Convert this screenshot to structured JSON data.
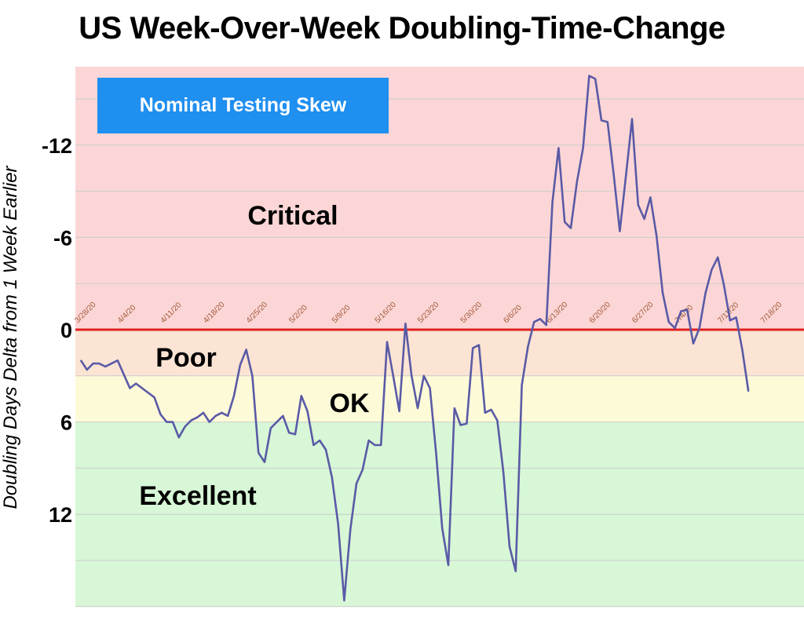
{
  "title": "US Week-Over-Week Doubling-Time-Change",
  "annotation": "Nominal Testing Skew",
  "zones": [
    {
      "label": "Critical",
      "from": -20,
      "to": 0,
      "color": "#fcd6d6"
    },
    {
      "label": "Poor",
      "from": 0,
      "to": 3,
      "color": "#fbe4d3"
    },
    {
      "label": "OK",
      "from": 3,
      "to": 6,
      "color": "#fdfad8"
    },
    {
      "label": "Excellent",
      "from": 6,
      "to": 18,
      "color": "#d7f7d6"
    }
  ],
  "chart_data": {
    "type": "line",
    "title": "US Week-Over-Week Doubling-Time-Change",
    "ylabel": "Doubling Days Delta  from 1 Week Earlier",
    "xlabel": "",
    "y_inverted": true,
    "ylim": [
      -17,
      18
    ],
    "yticks": [
      -12,
      -6,
      0,
      6,
      12
    ],
    "ytick_labels": [
      "-12",
      "-6",
      "0",
      "6",
      "12"
    ],
    "x_tick_labels": [
      "3/28/20",
      "4/4/20",
      "4/11/20",
      "4/18/20",
      "4/25/20",
      "5/2/20",
      "5/9/20",
      "5/16/20",
      "5/23/20",
      "5/30/20",
      "6/6/20",
      "6/13/20",
      "6/20/20",
      "6/27/20",
      "7/4/20",
      "7/11/20",
      "7/18/20"
    ],
    "x_start": "3/28/20",
    "grid": true,
    "reference_line": {
      "y": 0,
      "color": "#e02020"
    },
    "series": [
      {
        "color": "#5a5aa6",
        "values": [
          2.0,
          2.6,
          2.2,
          2.2,
          2.4,
          2.2,
          2.0,
          2.9,
          3.8,
          3.5,
          3.8,
          4.1,
          4.4,
          5.5,
          6.0,
          6.0,
          7.0,
          6.3,
          5.9,
          5.7,
          5.4,
          6.0,
          5.6,
          5.4,
          5.6,
          4.3,
          2.3,
          1.3,
          3.0,
          8.0,
          8.6,
          6.4,
          6.0,
          5.6,
          6.7,
          6.8,
          4.3,
          5.3,
          7.5,
          7.2,
          7.8,
          9.6,
          12.6,
          17.6,
          13.0,
          10.0,
          9.1,
          7.2,
          7.5,
          7.5,
          0.8,
          3.0,
          5.3,
          -0.4,
          3.0,
          5.1,
          3.0,
          3.8,
          8.0,
          12.9,
          15.3,
          5.1,
          6.2,
          6.1,
          1.2,
          1.0,
          5.4,
          5.2,
          5.9,
          9.3,
          14.1,
          15.7,
          3.6,
          1.1,
          -0.5,
          -0.7,
          -0.3,
          -8.3,
          -11.8,
          -7.0,
          -6.6,
          -9.6,
          -11.8,
          -16.5,
          -16.3,
          -13.6,
          -13.5,
          -10.1,
          -6.4,
          -10.0,
          -13.7,
          -8.1,
          -7.2,
          -8.6,
          -6.1,
          -2.4,
          -0.5,
          -0.1,
          -1.2,
          -1.3,
          0.9,
          -0.1,
          -2.4,
          -3.9,
          -4.7,
          -2.9,
          -0.6,
          -0.8,
          1.3,
          4.0
        ]
      }
    ]
  }
}
